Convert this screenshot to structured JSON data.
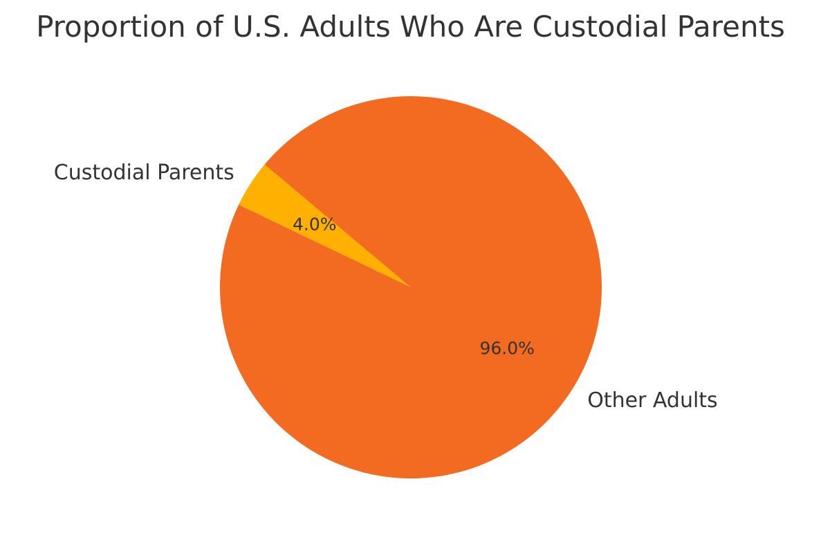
{
  "chart_data": {
    "type": "pie",
    "title": "Proportion of U.S. Adults Who Are Custodial Parents",
    "slices": [
      {
        "label": "Custodial Parents",
        "value": 4.0,
        "pct_label": "4.0%",
        "color": "#ffb000"
      },
      {
        "label": "Other Adults",
        "value": 96.0,
        "pct_label": "96.0%",
        "color": "#f36a21"
      }
    ],
    "start_angle": 140,
    "direction": "counterclockwise",
    "legend": "none"
  }
}
